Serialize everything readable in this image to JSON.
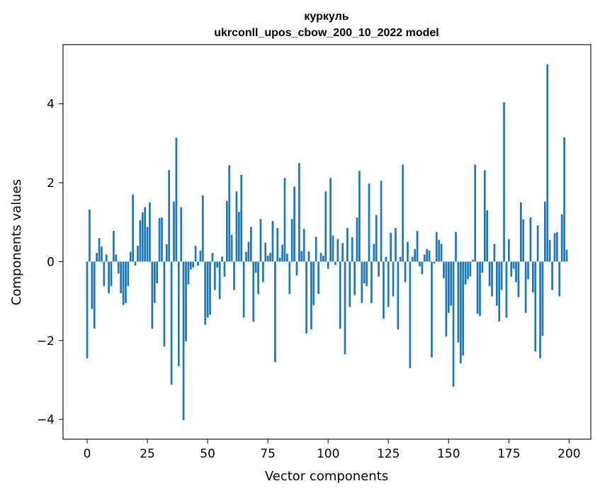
{
  "chart_data": {
    "type": "bar",
    "title": "куркуль",
    "subtitle": "ukrconll_upos_cbow_200_10_2022 model",
    "xlabel": "Vector components",
    "ylabel": "Components values",
    "xlim": [
      -10,
      209
    ],
    "ylim": [
      -4.5,
      5.5
    ],
    "xticks": [
      0,
      25,
      50,
      75,
      100,
      125,
      150,
      175,
      200
    ],
    "yticks": [
      -4,
      -2,
      0,
      2,
      4
    ],
    "xtick_labels": [
      "0",
      "25",
      "50",
      "75",
      "100",
      "125",
      "150",
      "175",
      "200"
    ],
    "ytick_labels": [
      "−4",
      "−2",
      "0",
      "2",
      "4"
    ],
    "bar_color": "#1f77b4",
    "values": [
      -2.45,
      1.32,
      -1.2,
      -1.7,
      0.22,
      0.6,
      0.38,
      -0.62,
      0.18,
      -0.8,
      -0.62,
      0.78,
      0.18,
      -0.3,
      -0.8,
      -1.1,
      -1.05,
      -0.62,
      0.25,
      1.7,
      -0.1,
      0.4,
      1.05,
      1.25,
      1.38,
      0.88,
      1.5,
      -1.7,
      -1.05,
      -0.55,
      1.1,
      1.12,
      -2.15,
      0.44,
      2.32,
      -3.12,
      1.52,
      3.14,
      -2.65,
      1.38,
      -4.02,
      -2.02,
      -0.58,
      -0.2,
      -0.15,
      0.4,
      -0.1,
      0.28,
      1.68,
      -1.6,
      -1.42,
      -1.35,
      0.22,
      -0.72,
      -0.15,
      -0.95,
      0.13,
      -0.38,
      1.54,
      2.44,
      0.68,
      -0.72,
      1.78,
      1.26,
      2.2,
      -1.42,
      0.25,
      0.5,
      0.88,
      -1.52,
      -0.28,
      -0.82,
      1.08,
      -0.52,
      0.48,
      0.15,
      0.22,
      1.03,
      -2.55,
      0.85,
      0.1,
      0.43,
      2.12,
      0.2,
      -0.82,
      1.08,
      1.9,
      -0.35,
      2.5,
      0.27,
      0.83,
      -1.82,
      0.26,
      -1.72,
      -1.1,
      0.63,
      -0.82,
      0.22,
      0.15,
      1.78,
      -0.18,
      2.12,
      0.66,
      -0.08,
      0.57,
      -1.7,
      0.47,
      -2.35,
      0.85,
      -1.15,
      0.62,
      -0.85,
      1.12,
      2.3,
      -1.05,
      -0.55,
      -0.62,
      1.98,
      -1.05,
      0.45,
      1.18,
      -0.38,
      2.05,
      -1.45,
      0.12,
      -1.15,
      0.73,
      -0.88,
      0.85,
      -1.72,
      0.12,
      2.46,
      -0.52,
      0.5,
      -2.7,
      0.12,
      0.32,
      0.78,
      -0.12,
      -0.32,
      0.18,
      0.32,
      0.28,
      -2.43,
      -0.05,
      0.75,
      0.55,
      0.45,
      -0.42,
      -1.9,
      -1.3,
      -1.12,
      -3.17,
      0.75,
      -2.05,
      -2.58,
      -2.38,
      -0.58,
      -0.45,
      -0.38,
      0.05,
      2.46,
      -1.32,
      -1.38,
      -0.28,
      2.32,
      1.3,
      -0.62,
      -0.88,
      0.45,
      -1.12,
      -1.52,
      -0.72,
      4.04,
      -1.42,
      0.57,
      -0.38,
      -0.18,
      -0.52,
      -0.9,
      1.5,
      1.07,
      -1.3,
      -0.45,
      1.12,
      -0.78,
      -2.28,
      0.92,
      -2.45,
      -1.88,
      1.52,
      5.0,
      0.55,
      -0.72,
      0.72,
      0.75,
      -0.88,
      1.2,
      3.15,
      0.3
    ]
  }
}
